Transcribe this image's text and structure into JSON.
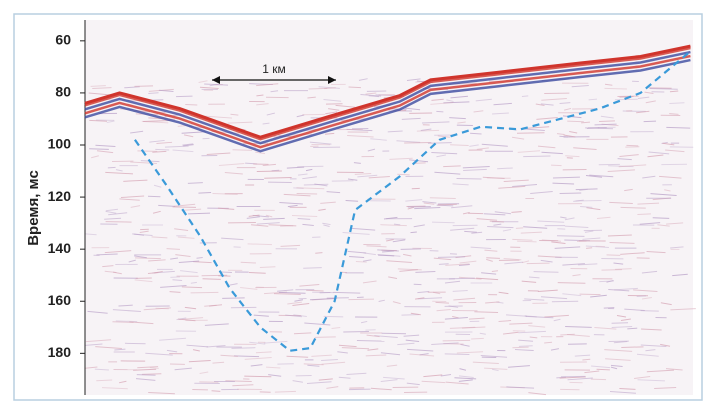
{
  "chart_data": {
    "type": "seismic",
    "ylabel": "Время, мс",
    "scale_label": "1 км",
    "ylim": [
      196,
      52
    ],
    "yticks": [
      60,
      80,
      100,
      120,
      140,
      160,
      180
    ],
    "xlim": [
      0,
      4.75
    ],
    "series": [
      {
        "color": "#d0342c",
        "x": [
          0,
          0.27,
          0.74,
          1.37,
          1.91,
          2.46,
          2.7,
          3.24,
          3.87,
          4.34,
          4.73
        ],
        "values": [
          84,
          80,
          86,
          97,
          89,
          81,
          75,
          72,
          68.5,
          66,
          62
        ]
      },
      {
        "color": "#3a9ad9",
        "style": "dashed",
        "x": [
          0.39,
          0.63,
          0.9,
          1.13,
          1.37,
          1.6,
          1.76,
          1.95,
          2.11,
          2.46,
          2.77,
          3.09,
          3.4,
          3.71,
          4.02,
          4.34,
          4.73
        ],
        "values": [
          98,
          115,
          135,
          155,
          170,
          179,
          178,
          160,
          125,
          112,
          98,
          93,
          94,
          90,
          86,
          80,
          64
        ]
      }
    ]
  }
}
